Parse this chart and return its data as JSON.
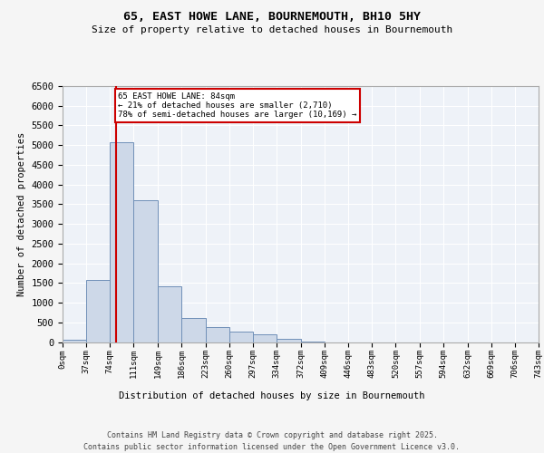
{
  "title_line1": "65, EAST HOWE LANE, BOURNEMOUTH, BH10 5HY",
  "title_line2": "Size of property relative to detached houses in Bournemouth",
  "xlabel": "Distribution of detached houses by size in Bournemouth",
  "ylabel": "Number of detached properties",
  "footer_line1": "Contains HM Land Registry data © Crown copyright and database right 2025.",
  "footer_line2": "Contains public sector information licensed under the Open Government Licence v3.0.",
  "annotation_title": "65 EAST HOWE LANE: 84sqm",
  "annotation_line1": "← 21% of detached houses are smaller (2,710)",
  "annotation_line2": "78% of semi-detached houses are larger (10,169) →",
  "property_size_sqm": 84,
  "bin_edges": [
    0,
    37,
    74,
    111,
    149,
    186,
    223,
    260,
    297,
    334,
    372,
    409,
    446,
    483,
    520,
    557,
    594,
    632,
    669,
    706,
    743
  ],
  "bin_labels": [
    "0sqm",
    "37sqm",
    "74sqm",
    "111sqm",
    "149sqm",
    "186sqm",
    "223sqm",
    "260sqm",
    "297sqm",
    "334sqm",
    "372sqm",
    "409sqm",
    "446sqm",
    "483sqm",
    "520sqm",
    "557sqm",
    "594sqm",
    "632sqm",
    "669sqm",
    "706sqm",
    "743sqm"
  ],
  "bar_heights": [
    50,
    1580,
    5080,
    3600,
    1420,
    600,
    380,
    270,
    200,
    90,
    20,
    0,
    0,
    0,
    0,
    0,
    0,
    0,
    0,
    0
  ],
  "bar_color": "#cdd8e8",
  "bar_edge_color": "#7090b8",
  "marker_line_color": "#cc0000",
  "annotation_box_color": "#cc0000",
  "background_color": "#eef2f8",
  "grid_color": "#ffffff",
  "ylim": [
    0,
    6500
  ],
  "yticks": [
    0,
    500,
    1000,
    1500,
    2000,
    2500,
    3000,
    3500,
    4000,
    4500,
    5000,
    5500,
    6000,
    6500
  ],
  "fig_width": 6.0,
  "fig_height": 5.0,
  "fig_bg": "#f5f5f5"
}
